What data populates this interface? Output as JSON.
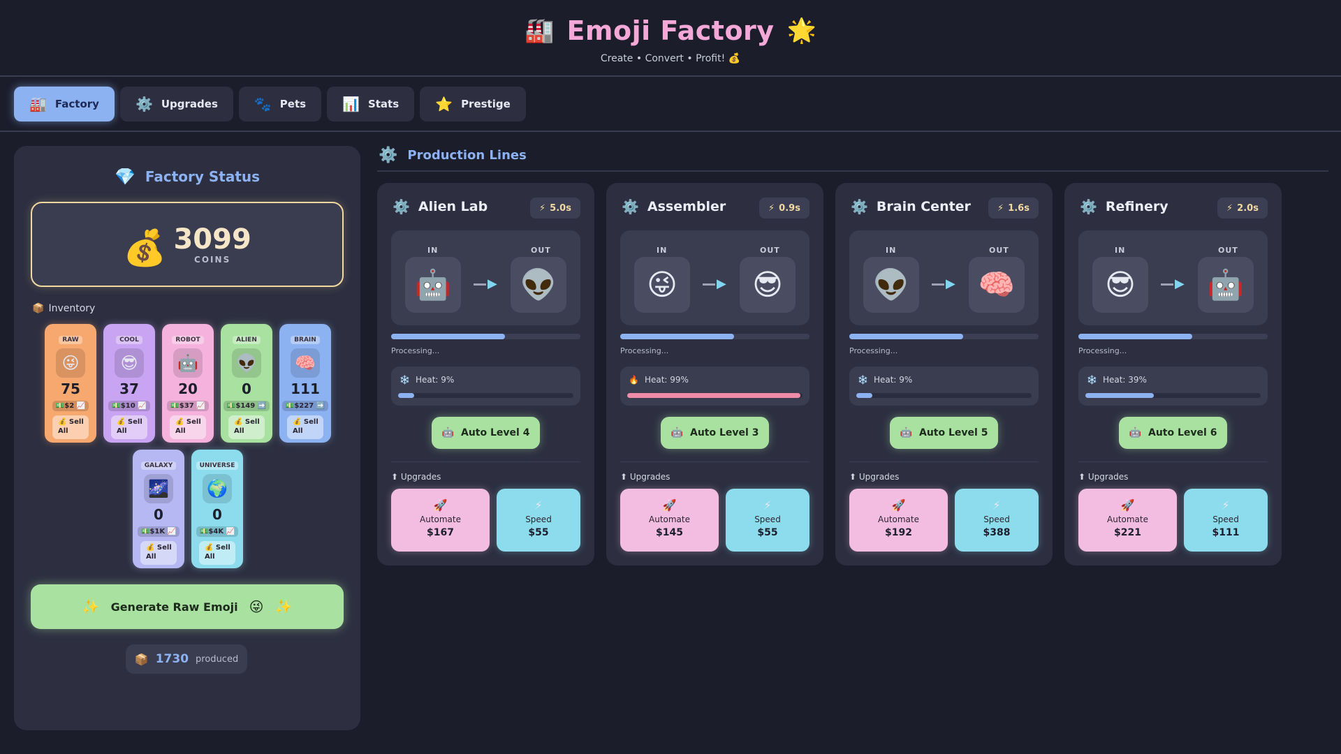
{
  "header": {
    "title": "Emoji Factory",
    "title_left_emoji": "🏭",
    "title_right_emoji": "🌟",
    "subtitle": "Create • Convert • Profit! 💰"
  },
  "tabs": [
    {
      "label": "Factory",
      "icon": "🏭",
      "active": true
    },
    {
      "label": "Upgrades",
      "icon": "⚙️",
      "active": false
    },
    {
      "label": "Pets",
      "icon": "🐾",
      "active": false
    },
    {
      "label": "Stats",
      "icon": "📊",
      "active": false
    },
    {
      "label": "Prestige",
      "icon": "⭐",
      "active": false
    }
  ],
  "status": {
    "title": "Factory Status",
    "icon": "💎",
    "coins": "3099",
    "coins_label": "COINS",
    "coins_icon": "💰",
    "inventory_title": "Inventory",
    "inventory_icon": "📦",
    "inventory": [
      {
        "tag": "RAW",
        "emoji": "😜",
        "count": "75",
        "price": "💵$2 📈",
        "sell": "💰 Sell All",
        "color": "#f7a86e"
      },
      {
        "tag": "COOL",
        "emoji": "😎",
        "count": "37",
        "price": "💵$10 📈",
        "sell": "💰 Sell All",
        "color": "#c9a4f2"
      },
      {
        "tag": "ROBOT",
        "emoji": "🤖",
        "count": "20",
        "price": "💵$37 📈",
        "sell": "💰 Sell All",
        "color": "#f4b2dc"
      },
      {
        "tag": "ALIEN",
        "emoji": "👽",
        "count": "0",
        "price": "💵$149 ➡️",
        "sell": "💰 Sell All",
        "color": "#a8e1a0"
      },
      {
        "tag": "BRAIN",
        "emoji": "🧠",
        "count": "111",
        "price": "💵$227 ➡️",
        "sell": "💰 Sell All",
        "color": "#8db2f2"
      },
      {
        "tag": "GALAXY",
        "emoji": "🌌",
        "count": "0",
        "price": "💵$1K 📈",
        "sell": "💰 Sell All",
        "color": "#b5b8f2"
      },
      {
        "tag": "UNIVERSE",
        "emoji": "🌍",
        "count": "0",
        "price": "💵$4K 📈",
        "sell": "💰 Sell All",
        "color": "#8ddcee"
      }
    ],
    "generate_label": "Generate Raw Emoji",
    "generate_emoji": "😜",
    "generate_sparkle": "✨",
    "produced_icon": "📦",
    "produced_count": "1730",
    "produced_label": "produced"
  },
  "production": {
    "title": "Production Lines",
    "icon": "⚙️",
    "in_label": "IN",
    "out_label": "OUT",
    "processing_label": "Processing...",
    "upgrades_label": "⬆ Upgrades",
    "lines": [
      {
        "name": "Alien Lab",
        "speed": "5.0s",
        "in": "🤖",
        "out": "👽",
        "progress": 0.6,
        "heat": "Heat: 9%",
        "heat_value": 0.09,
        "heat_icon": "❄️",
        "heat_color": "#8db2f2",
        "auto": "Auto Level 4",
        "auto_icon": "🤖",
        "automate_label": "Automate",
        "automate_price": "$167",
        "automate_icon": "🚀",
        "speed_label": "Speed",
        "speed_price": "$55",
        "speed_icon": "⚡"
      },
      {
        "name": "Assembler",
        "speed": "0.9s",
        "in": "😜",
        "out": "😎",
        "progress": 0.6,
        "heat": "Heat: 99%",
        "heat_value": 0.99,
        "heat_icon": "🔥",
        "heat_color": "#f08ca8",
        "auto": "Auto Level 3",
        "auto_icon": "🤖",
        "automate_label": "Automate",
        "automate_price": "$145",
        "automate_icon": "🚀",
        "speed_label": "Speed",
        "speed_price": "$55",
        "speed_icon": "⚡"
      },
      {
        "name": "Brain Center",
        "speed": "1.6s",
        "in": "👽",
        "out": "🧠",
        "progress": 0.6,
        "heat": "Heat: 9%",
        "heat_value": 0.09,
        "heat_icon": "❄️",
        "heat_color": "#8db2f2",
        "auto": "Auto Level 5",
        "auto_icon": "🤖",
        "automate_label": "Automate",
        "automate_price": "$192",
        "automate_icon": "🚀",
        "speed_label": "Speed",
        "speed_price": "$388",
        "speed_icon": "⚡"
      },
      {
        "name": "Refinery",
        "speed": "2.0s",
        "in": "😎",
        "out": "🤖",
        "progress": 0.6,
        "heat": "Heat: 39%",
        "heat_value": 0.39,
        "heat_icon": "❄️",
        "heat_color": "#8db2f2",
        "auto": "Auto Level 6",
        "auto_icon": "🤖",
        "automate_label": "Automate",
        "automate_price": "$221",
        "automate_icon": "🚀",
        "speed_label": "Speed",
        "speed_price": "$111",
        "speed_icon": "⚡"
      }
    ]
  }
}
